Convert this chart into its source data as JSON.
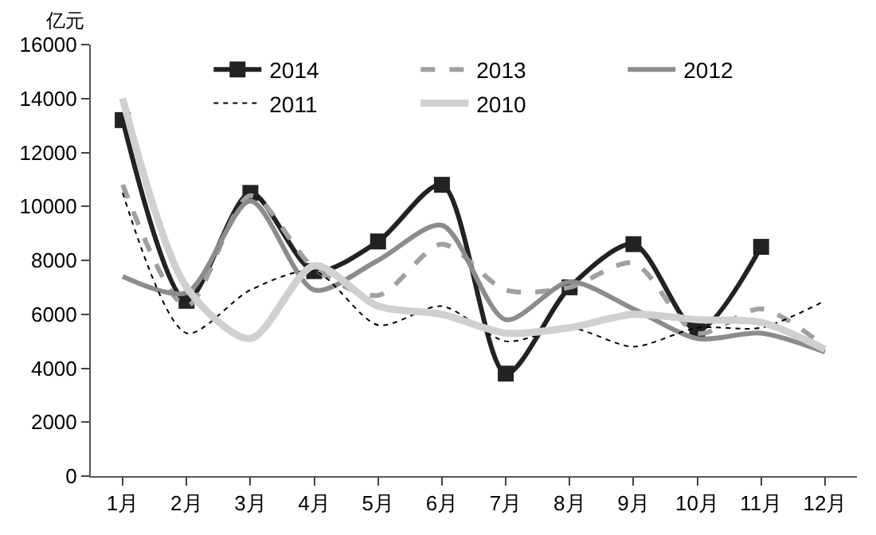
{
  "chart_data": {
    "type": "line",
    "ylabel": "亿元",
    "categories": [
      "1月",
      "2月",
      "3月",
      "4月",
      "5月",
      "6月",
      "7月",
      "8月",
      "9月",
      "10月",
      "11月",
      "12月"
    ],
    "ylim": [
      0,
      16000
    ],
    "yticks": [
      0,
      2000,
      4000,
      6000,
      8000,
      10000,
      12000,
      14000,
      16000
    ],
    "legend": "top",
    "series": [
      {
        "name": "2014",
        "color": "#222222",
        "marker": "square",
        "line_style": "solid",
        "values": [
          13200,
          6500,
          10500,
          7600,
          8700,
          10800,
          3800,
          7000,
          8600,
          5400,
          8500,
          null
        ]
      },
      {
        "name": "2013",
        "color": "#a0a0a0",
        "marker": "none",
        "line_style": "dashed",
        "values": [
          10800,
          6300,
          10400,
          7700,
          6700,
          8600,
          6900,
          7000,
          7900,
          5300,
          6200,
          4800
        ]
      },
      {
        "name": "2012",
        "color": "#8c8c8c",
        "marker": "none",
        "line_style": "solid",
        "values": [
          7400,
          6800,
          10200,
          6900,
          8000,
          9300,
          5800,
          7200,
          6200,
          5100,
          5300,
          4600
        ]
      },
      {
        "name": "2011",
        "color": "#000000",
        "marker": "none",
        "line_style": "dotted",
        "values": [
          10500,
          5300,
          6900,
          7600,
          5600,
          6300,
          5000,
          5500,
          4800,
          5500,
          5500,
          6500
        ]
      },
      {
        "name": "2010",
        "color": "#d0d0d0",
        "marker": "none",
        "line_style": "solid",
        "values": [
          14000,
          7000,
          5100,
          7800,
          6300,
          6000,
          5300,
          5500,
          6000,
          5800,
          5700,
          4700
        ]
      }
    ]
  }
}
